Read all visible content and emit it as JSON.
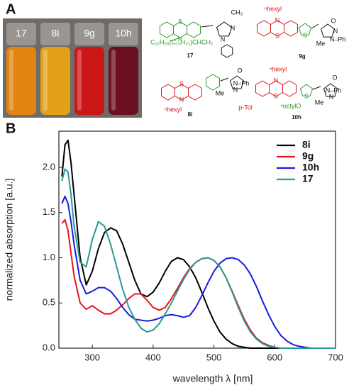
{
  "panel_labels": [
    "A",
    "B"
  ],
  "vials": [
    {
      "label": "17",
      "color": "#e8860c"
    },
    {
      "label": "8i",
      "color": "#e9a417"
    },
    {
      "label": "9g",
      "color": "#d01212"
    },
    {
      "label": "10h",
      "color": "#6c0b1c"
    }
  ],
  "structures": [
    {
      "label": "17",
      "texts": [
        "S",
        "N",
        "CH₃",
        "N",
        "N",
        "C₁₂H₂₅(C₁₀H₂₁)CHCH₂"
      ]
    },
    {
      "label": "9g",
      "texts": [
        "N",
        "ⁿhexyl",
        "S",
        "S",
        "O",
        "N",
        "Me",
        "N–Ph"
      ]
    },
    {
      "label": "8i",
      "texts": [
        "S",
        "N",
        "ⁿhexyl",
        "O",
        "N–Ph",
        "N",
        "Me"
      ]
    },
    {
      "label": "10h",
      "texts": [
        "ⁿhexyl",
        "N",
        "S",
        "p-Tol",
        "S",
        "ⁿoctylO",
        "O",
        "N–Ph",
        "N",
        "Me"
      ]
    }
  ],
  "chart_data": {
    "type": "line",
    "xlabel": "wavelength λ [nm]",
    "ylabel": "normalized absorption [a.u.]",
    "xlim": [
      245,
      700
    ],
    "ylim": [
      0,
      2.4
    ],
    "xticks": [
      300,
      400,
      500,
      600,
      700
    ],
    "yticks": [
      {
        "value": 0,
        "label": "0.0"
      },
      {
        "value": 0.5,
        "label": "0.5"
      },
      {
        "value": 1,
        "label": "1.0"
      },
      {
        "value": 1.5,
        "label": "1.5"
      },
      {
        "value": 2,
        "label": "2.0"
      }
    ],
    "legend": "upper right",
    "x": [
      250,
      255,
      260,
      265,
      270,
      280,
      290,
      300,
      310,
      320,
      330,
      340,
      350,
      360,
      370,
      380,
      390,
      400,
      410,
      420,
      430,
      440,
      450,
      460,
      470,
      480,
      490,
      500,
      510,
      520,
      530,
      540,
      550,
      560,
      570,
      580,
      590,
      600,
      610,
      620,
      630,
      640,
      650,
      660,
      670,
      680,
      690,
      700
    ],
    "series": [
      {
        "name": "8i",
        "color": "#000000",
        "values": [
          1.9,
          2.25,
          2.3,
          2.05,
          1.7,
          1.0,
          0.7,
          0.85,
          1.1,
          1.28,
          1.33,
          1.3,
          1.15,
          0.95,
          0.75,
          0.6,
          0.57,
          0.62,
          0.72,
          0.85,
          0.96,
          1.0,
          0.98,
          0.9,
          0.78,
          0.62,
          0.45,
          0.3,
          0.18,
          0.1,
          0.05,
          0.02,
          0.01,
          0,
          0,
          0,
          0,
          0,
          0,
          0,
          0,
          0,
          0,
          0,
          0,
          0,
          0,
          0
        ]
      },
      {
        "name": "9g",
        "color": "#e8141c",
        "values": [
          1.38,
          1.42,
          1.3,
          1.05,
          0.8,
          0.5,
          0.43,
          0.47,
          0.42,
          0.38,
          0.38,
          0.42,
          0.48,
          0.55,
          0.6,
          0.6,
          0.53,
          0.45,
          0.42,
          0.45,
          0.55,
          0.66,
          0.78,
          0.88,
          0.95,
          0.99,
          1.0,
          0.97,
          0.9,
          0.78,
          0.63,
          0.47,
          0.32,
          0.2,
          0.11,
          0.06,
          0.03,
          0.01,
          0,
          0,
          0,
          0,
          0,
          0,
          0,
          0,
          0,
          0
        ]
      },
      {
        "name": "10h",
        "color": "#1a1ae0",
        "values": [
          1.6,
          1.68,
          1.6,
          1.4,
          1.15,
          0.75,
          0.6,
          0.63,
          0.67,
          0.67,
          0.63,
          0.55,
          0.45,
          0.37,
          0.32,
          0.31,
          0.3,
          0.31,
          0.33,
          0.36,
          0.37,
          0.36,
          0.34,
          0.36,
          0.45,
          0.58,
          0.72,
          0.85,
          0.94,
          0.99,
          1.0,
          0.98,
          0.92,
          0.82,
          0.68,
          0.52,
          0.37,
          0.24,
          0.14,
          0.08,
          0.04,
          0.02,
          0.01,
          0,
          0,
          0,
          0,
          0
        ]
      },
      {
        "name": "17",
        "color": "#2a9a94",
        "values": [
          1.85,
          1.98,
          1.95,
          1.7,
          1.35,
          0.95,
          0.9,
          1.2,
          1.4,
          1.35,
          1.15,
          0.9,
          0.65,
          0.45,
          0.32,
          0.22,
          0.18,
          0.2,
          0.27,
          0.38,
          0.5,
          0.63,
          0.76,
          0.87,
          0.95,
          0.99,
          1.0,
          0.97,
          0.9,
          0.78,
          0.62,
          0.45,
          0.3,
          0.18,
          0.1,
          0.05,
          0.02,
          0.01,
          0,
          0,
          0,
          0,
          0,
          0,
          0,
          0,
          0,
          0
        ]
      }
    ]
  }
}
